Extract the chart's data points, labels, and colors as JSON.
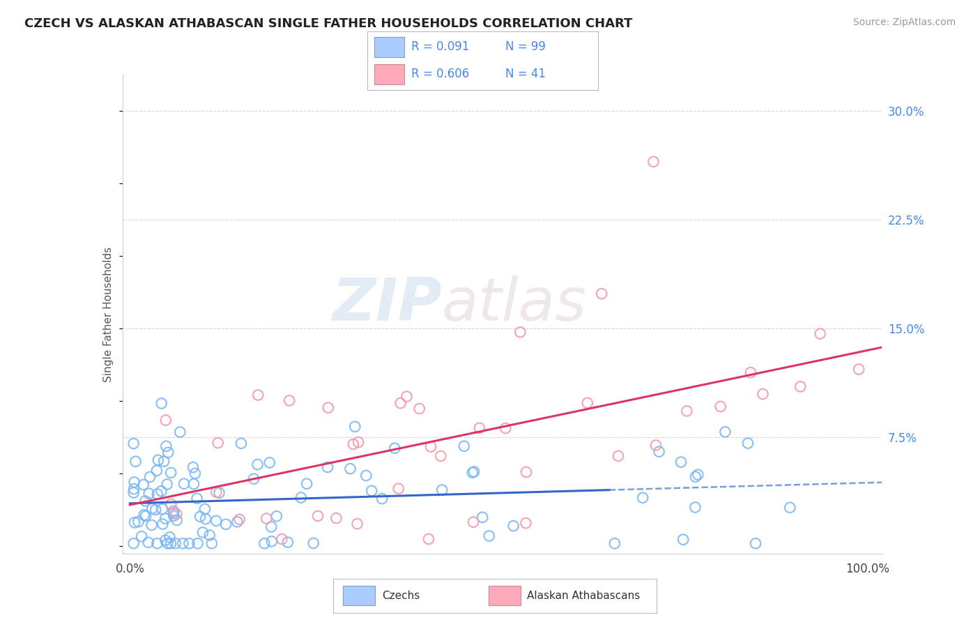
{
  "title": "CZECH VS ALASKAN ATHABASCAN SINGLE FATHER HOUSEHOLDS CORRELATION CHART",
  "source": "Source: ZipAtlas.com",
  "ylabel": "Single Father Households",
  "ytick_vals": [
    0.0,
    0.075,
    0.15,
    0.225,
    0.3
  ],
  "ytick_labels": [
    "",
    "7.5%",
    "15.0%",
    "22.5%",
    "30.0%"
  ],
  "xlim": [
    0.0,
    1.0
  ],
  "ylim": [
    0.0,
    0.32
  ],
  "watermark_zip": "ZIP",
  "watermark_atlas": "atlas",
  "blue_scatter": "#7ab8f5",
  "pink_scatter": "#f599aa",
  "trend_blue": "#3366cc",
  "trend_pink": "#dd3366",
  "legend_r1": "0.091",
  "legend_n1": "99",
  "legend_r2": "0.606",
  "legend_n2": "41",
  "blue_legend_fill": "#aaccff",
  "pink_legend_fill": "#ffaabb",
  "tick_color": "#4488ee",
  "grid_color": "#cccccc",
  "title_color": "#222222",
  "source_color": "#999999",
  "ylabel_color": "#555555"
}
